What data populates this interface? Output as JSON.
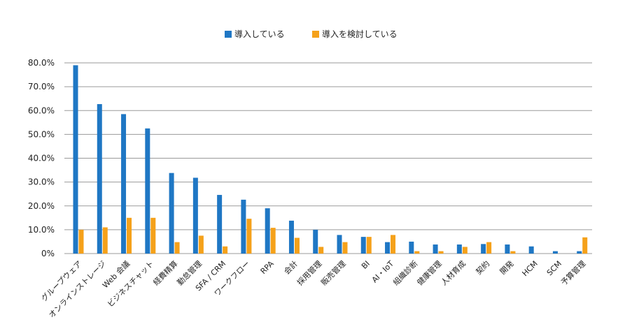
{
  "chart_data": {
    "type": "bar",
    "categories": [
      "グループウェア",
      "オンラインストレージ",
      "Web 会議",
      "ビジネスチャット",
      "経費精算",
      "勤怠管理",
      "SFA / CRM",
      "ワークフロー",
      "RPA",
      "会計",
      "採用管理",
      "販売管理",
      "BI",
      "AI・IoT",
      "組織診断",
      "健康管理",
      "人材育成",
      "契約",
      "開発",
      "HCM",
      "SCM",
      "予算管理"
    ],
    "series": [
      {
        "name": "導入している",
        "color": "#1f77c4",
        "values": [
          79.0,
          62.7,
          58.5,
          52.5,
          33.8,
          31.8,
          24.6,
          22.6,
          19.0,
          13.8,
          10.0,
          7.8,
          7.0,
          4.8,
          5.0,
          3.8,
          3.8,
          4.0,
          3.8,
          3.0,
          1.0,
          1.0
        ]
      },
      {
        "name": "導入を検討している",
        "color": "#f5a11a",
        "values": [
          10.0,
          11.0,
          15.0,
          15.0,
          4.8,
          7.5,
          3.0,
          14.6,
          10.8,
          6.6,
          2.8,
          4.8,
          7.0,
          7.8,
          1.0,
          1.0,
          2.8,
          4.8,
          1.0,
          0,
          0,
          6.8
        ]
      }
    ],
    "y_ticks": [
      "0%",
      "10.0%",
      "20.0%",
      "30.0%",
      "40.0%",
      "50.0%",
      "60.0%",
      "70.0%",
      "80.0%"
    ],
    "ylim": [
      0,
      80
    ],
    "title": "",
    "xlabel": "",
    "ylabel": "",
    "grid": true,
    "legend_position": "top-center"
  }
}
